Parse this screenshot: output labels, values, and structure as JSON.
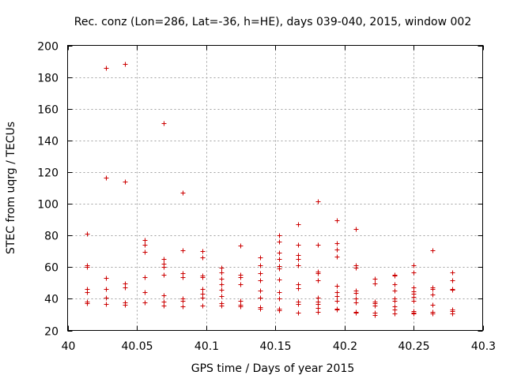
{
  "chart_data": {
    "type": "scatter",
    "title": "Rec. conz (Lon=286, Lat=-36, h=HE), days 039-040, 2015, window 002",
    "xlabel": "GPS time / Days of year 2015",
    "ylabel": "STEC from uqrg / TECUs",
    "xlim": [
      40,
      40.3
    ],
    "ylim": [
      20,
      200
    ],
    "xticks": [
      40,
      40.05,
      40.1,
      40.15,
      40.2,
      40.25,
      40.3
    ],
    "xtick_labels": [
      "40",
      "40.05",
      "40.1",
      "40.15",
      "40.2",
      "40.25",
      "40.3"
    ],
    "yticks": [
      20,
      40,
      60,
      80,
      100,
      120,
      140,
      160,
      180,
      200
    ],
    "ytick_labels": [
      "20",
      "40",
      "60",
      "80",
      "100",
      "120",
      "140",
      "160",
      "180",
      "200"
    ],
    "grid": true,
    "marker": "+",
    "color": "#cc0000",
    "series": [
      {
        "name": "STEC",
        "points": [
          [
            40.0139,
            81
          ],
          [
            40.0139,
            61
          ],
          [
            40.0139,
            60
          ],
          [
            40.0139,
            46
          ],
          [
            40.0139,
            44
          ],
          [
            40.0139,
            38
          ],
          [
            40.0139,
            37
          ],
          [
            40.0278,
            186
          ],
          [
            40.0278,
            116.5
          ],
          [
            40.0278,
            53
          ],
          [
            40.0278,
            46
          ],
          [
            40.0278,
            40.5
          ],
          [
            40.0278,
            36.5
          ],
          [
            40.0417,
            188.5
          ],
          [
            40.0417,
            114
          ],
          [
            40.0417,
            49.5
          ],
          [
            40.0417,
            47
          ],
          [
            40.0417,
            37.5
          ],
          [
            40.0417,
            36
          ],
          [
            40.0556,
            77
          ],
          [
            40.0556,
            74
          ],
          [
            40.0556,
            69.5
          ],
          [
            40.0556,
            53.5
          ],
          [
            40.0556,
            44
          ],
          [
            40.0556,
            37.5
          ],
          [
            40.0694,
            151
          ],
          [
            40.0694,
            65
          ],
          [
            40.0694,
            62
          ],
          [
            40.0694,
            60
          ],
          [
            40.0694,
            55
          ],
          [
            40.0694,
            42
          ],
          [
            40.0694,
            38
          ],
          [
            40.0694,
            35.5
          ],
          [
            40.0833,
            107
          ],
          [
            40.0833,
            70.5
          ],
          [
            40.0833,
            56
          ],
          [
            40.0833,
            53.5
          ],
          [
            40.0833,
            40
          ],
          [
            40.0833,
            38.5
          ],
          [
            40.0833,
            35
          ],
          [
            40.0972,
            70
          ],
          [
            40.0972,
            66
          ],
          [
            40.0972,
            54.5
          ],
          [
            40.0972,
            53.5
          ],
          [
            40.0972,
            46
          ],
          [
            40.0972,
            43
          ],
          [
            40.0972,
            40.5
          ],
          [
            40.0972,
            35.5
          ],
          [
            40.1111,
            59.5
          ],
          [
            40.1111,
            56.5
          ],
          [
            40.1111,
            52.5
          ],
          [
            40.1111,
            49
          ],
          [
            40.1111,
            45.5
          ],
          [
            40.1111,
            41.5
          ],
          [
            40.1111,
            37
          ],
          [
            40.1111,
            35.5
          ],
          [
            40.125,
            73.5
          ],
          [
            40.125,
            55
          ],
          [
            40.125,
            53.5
          ],
          [
            40.125,
            49
          ],
          [
            40.125,
            38.5
          ],
          [
            40.125,
            36
          ],
          [
            40.125,
            35
          ],
          [
            40.1389,
            66
          ],
          [
            40.1389,
            61
          ],
          [
            40.1389,
            56
          ],
          [
            40.1389,
            51.5
          ],
          [
            40.1389,
            45
          ],
          [
            40.1389,
            40.5
          ],
          [
            40.1389,
            34.5
          ],
          [
            40.1389,
            33.5
          ],
          [
            40.1528,
            80
          ],
          [
            40.1528,
            76
          ],
          [
            40.1528,
            69
          ],
          [
            40.1528,
            65
          ],
          [
            40.1528,
            60.5
          ],
          [
            40.1528,
            59
          ],
          [
            40.1528,
            52
          ],
          [
            40.1528,
            44
          ],
          [
            40.1528,
            40
          ],
          [
            40.1528,
            33.5
          ],
          [
            40.1528,
            32.5
          ],
          [
            40.1667,
            87
          ],
          [
            40.1667,
            74
          ],
          [
            40.1667,
            67.5
          ],
          [
            40.1667,
            65
          ],
          [
            40.1667,
            61
          ],
          [
            40.1667,
            49
          ],
          [
            40.1667,
            46.5
          ],
          [
            40.1667,
            38
          ],
          [
            40.1667,
            36.5
          ],
          [
            40.1667,
            31
          ],
          [
            40.1806,
            101.5
          ],
          [
            40.1806,
            74
          ],
          [
            40.1806,
            57
          ],
          [
            40.1806,
            56
          ],
          [
            40.1806,
            51.5
          ],
          [
            40.1806,
            40.5
          ],
          [
            40.1806,
            38
          ],
          [
            40.1806,
            36.5
          ],
          [
            40.1806,
            34
          ],
          [
            40.1806,
            31.5
          ],
          [
            40.1944,
            89.5
          ],
          [
            40.1944,
            75
          ],
          [
            40.1944,
            71
          ],
          [
            40.1944,
            66.5
          ],
          [
            40.1944,
            48
          ],
          [
            40.1944,
            44
          ],
          [
            40.1944,
            41.5
          ],
          [
            40.1944,
            38.5
          ],
          [
            40.1944,
            33.5
          ],
          [
            40.1944,
            33
          ],
          [
            40.2083,
            84
          ],
          [
            40.2083,
            61
          ],
          [
            40.2083,
            59.5
          ],
          [
            40.2083,
            45
          ],
          [
            40.2083,
            43.5
          ],
          [
            40.2083,
            40
          ],
          [
            40.2083,
            37.5
          ],
          [
            40.2083,
            31.5
          ],
          [
            40.2083,
            31
          ],
          [
            40.2222,
            52.5
          ],
          [
            40.2222,
            49.5
          ],
          [
            40.2222,
            38
          ],
          [
            40.2222,
            37
          ],
          [
            40.2222,
            35.5
          ],
          [
            40.2222,
            31
          ],
          [
            40.2222,
            29.5
          ],
          [
            40.2361,
            55
          ],
          [
            40.2361,
            54.5
          ],
          [
            40.2361,
            49
          ],
          [
            40.2361,
            45
          ],
          [
            40.2361,
            40
          ],
          [
            40.2361,
            38.5
          ],
          [
            40.2361,
            35
          ],
          [
            40.2361,
            33
          ],
          [
            40.2361,
            30.5
          ],
          [
            40.25,
            61
          ],
          [
            40.25,
            56.5
          ],
          [
            40.25,
            47
          ],
          [
            40.25,
            44.5
          ],
          [
            40.25,
            43
          ],
          [
            40.25,
            41
          ],
          [
            40.25,
            38.5
          ],
          [
            40.25,
            32
          ],
          [
            40.25,
            31
          ],
          [
            40.25,
            30.5
          ],
          [
            40.2639,
            70.5
          ],
          [
            40.2639,
            47
          ],
          [
            40.2639,
            46
          ],
          [
            40.2639,
            42.5
          ],
          [
            40.2639,
            36
          ],
          [
            40.2639,
            31.5
          ],
          [
            40.2639,
            30.5
          ],
          [
            40.2778,
            56.5
          ],
          [
            40.2778,
            51.5
          ],
          [
            40.2778,
            46
          ],
          [
            40.2778,
            45.5
          ],
          [
            40.2778,
            33
          ],
          [
            40.2778,
            32
          ],
          [
            40.2778,
            30.5
          ]
        ]
      }
    ]
  }
}
